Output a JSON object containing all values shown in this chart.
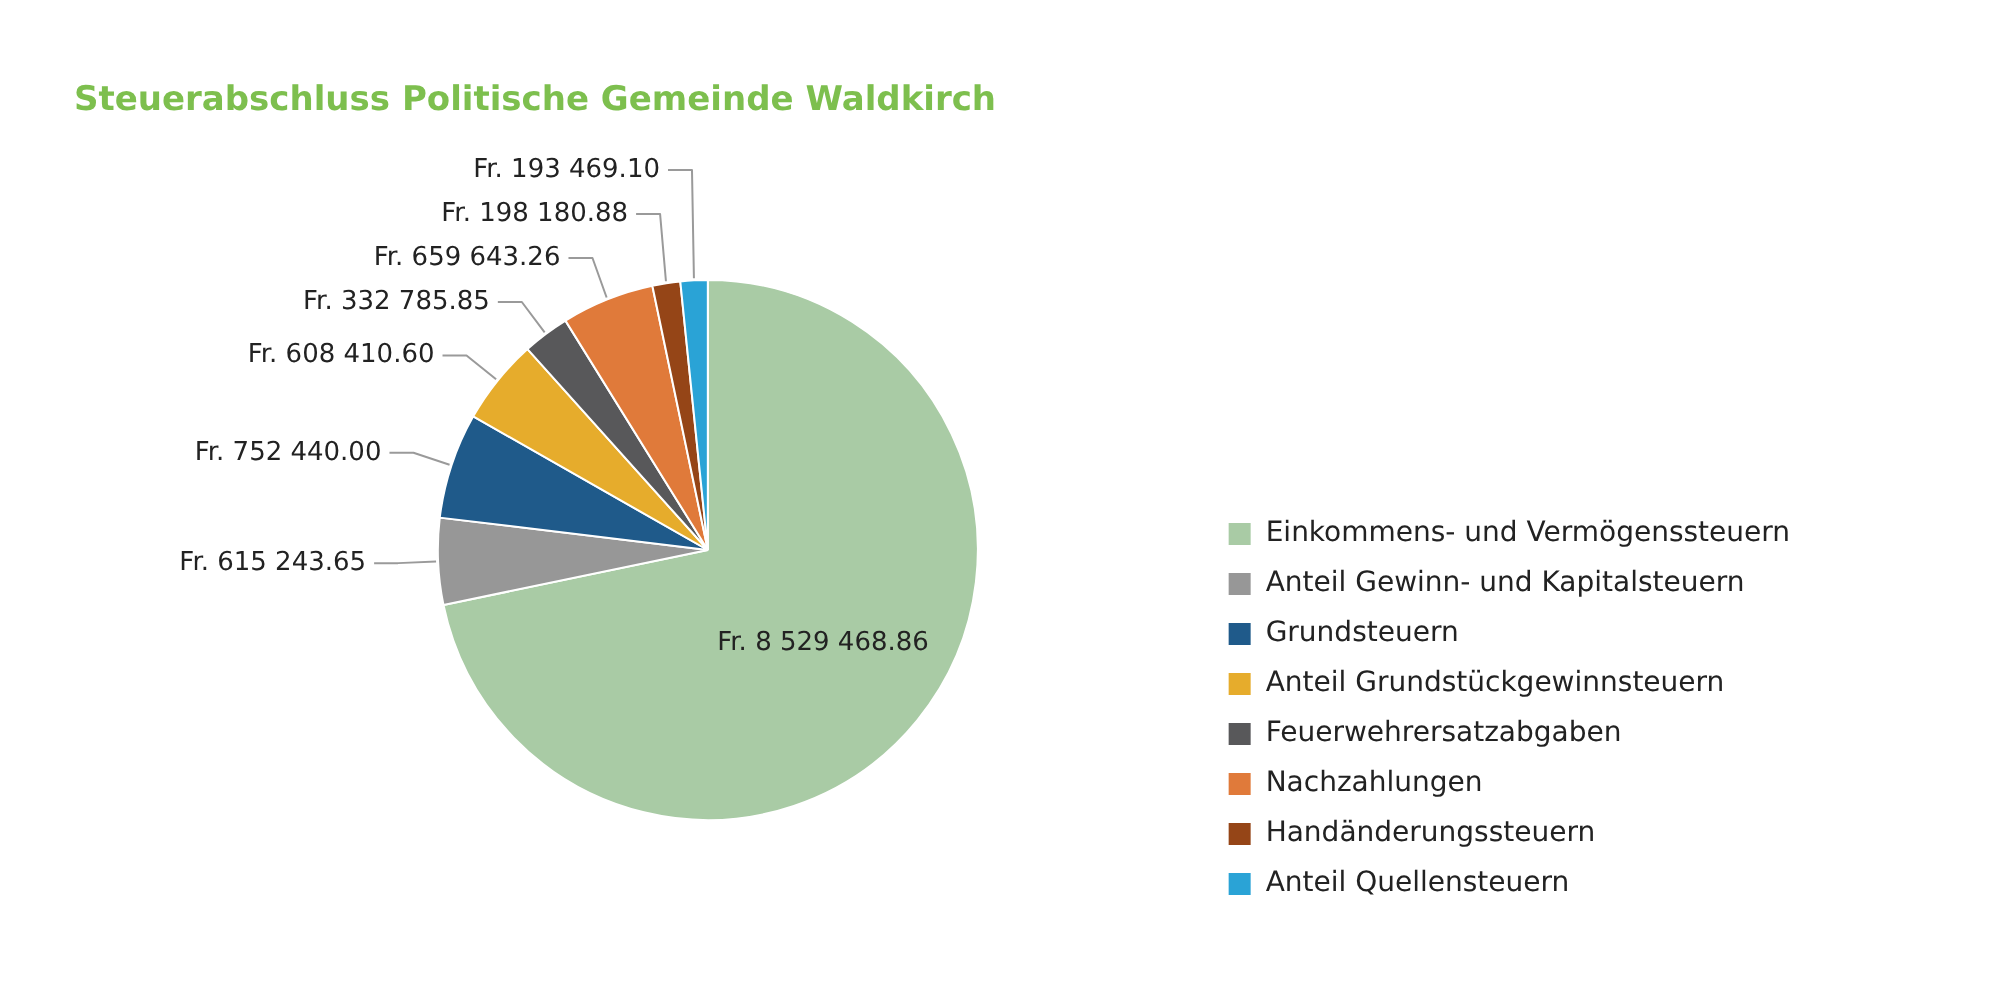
{
  "chart_data": {
    "type": "pie",
    "title": "Steuerabschluss Politische Gemeinde Waldkirch",
    "categories": [
      "Einkommens- und Vermögenssteuern",
      "Anteil Gewinn- und Kapitalsteuern",
      "Grundsteuern",
      "Anteil Grundstückgewinnsteuern",
      "Feuerwehrersatzabgaben",
      "Nachzahlungen",
      "Handänderungssteuern",
      "Anteil Quellensteuern"
    ],
    "values": [
      8529468.86,
      615243.65,
      752440.0,
      608410.6,
      332785.85,
      659643.26,
      198180.88,
      193469.1
    ],
    "value_labels": [
      "Fr. 8 529 468.86",
      "Fr. 615 243.65",
      "Fr. 752 440.00",
      "Fr. 608 410.60",
      "Fr. 332 785.85",
      "Fr. 659 643.26",
      "Fr. 198 180.88",
      "Fr. 193 469.10"
    ],
    "colors": [
      "#a9cba5",
      "#979797",
      "#1f5a8a",
      "#e6ac2c",
      "#58585a",
      "#e07a3a",
      "#954517",
      "#2aa3d6"
    ],
    "legend": "right"
  }
}
